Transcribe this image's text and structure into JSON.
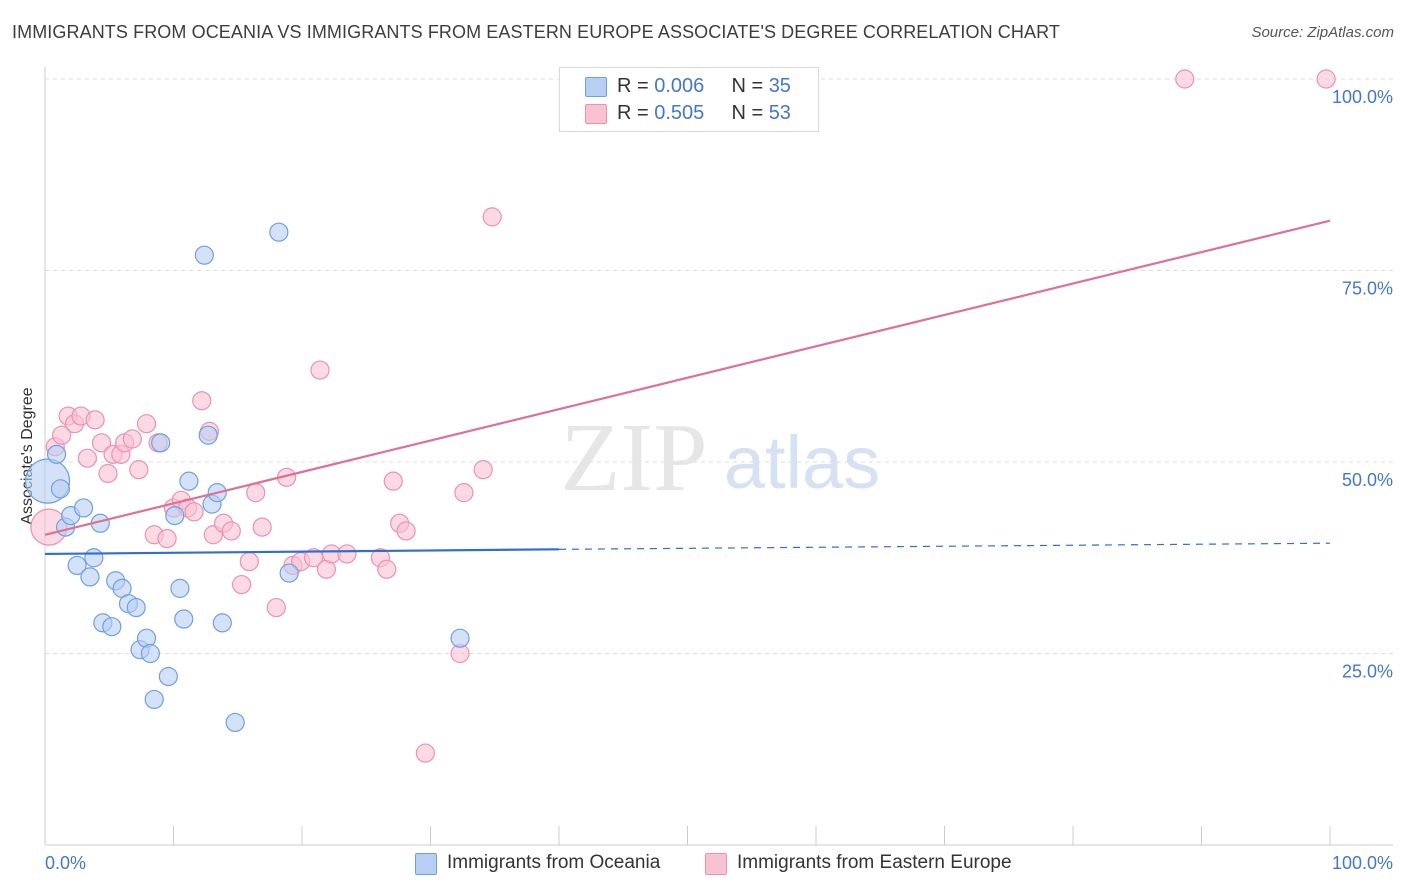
{
  "title": "IMMIGRANTS FROM OCEANIA VS IMMIGRANTS FROM EASTERN EUROPE ASSOCIATE'S DEGREE CORRELATION CHART",
  "source": "Source: ZipAtlas.com",
  "watermark": {
    "zip": "ZIP",
    "atlas": "atlas"
  },
  "legend": {
    "r_label": "R = ",
    "n_label": "N = ",
    "oceania": {
      "r": "0.006",
      "n": "35"
    },
    "eastern_europe": {
      "r": "0.505",
      "n": "53"
    }
  },
  "colors": {
    "oceania_fill": "#b7cff3",
    "oceania_stroke": "#6f9fe0",
    "oceania_line": "#2e6fd0",
    "europe_fill": "#f8c2d3",
    "europe_stroke": "#ec91ae",
    "europe_line": "#e06f96",
    "tick_label": "#4477cc",
    "grid": "#dddddd"
  },
  "chart_data": {
    "type": "scatter",
    "title": "IMMIGRANTS FROM OCEANIA VS IMMIGRANTS FROM EASTERN EUROPE ASSOCIATE'S DEGREE CORRELATION CHART",
    "xlabel": "",
    "ylabel": "Associate's Degree",
    "xlim": [
      0,
      100
    ],
    "ylim": [
      0,
      100
    ],
    "x_tick_labels": [
      "0.0%",
      "100.0%"
    ],
    "y_tick_labels": [
      "25.0%",
      "50.0%",
      "75.0%",
      "100.0%"
    ],
    "y_ticks": [
      25,
      50,
      75,
      100
    ],
    "grid": true,
    "series": [
      {
        "name": "Immigrants from Oceania",
        "r": 0.006,
        "n": 35,
        "trend": {
          "x0": 0,
          "y0": 38.0,
          "x1": 40,
          "y1": 38.6,
          "dash_to_x": 100,
          "dash_to_y": 39.4
        },
        "points": [
          [
            0.2,
            47.5,
            22
          ],
          [
            0.9,
            51.0,
            9
          ],
          [
            1.2,
            46.5,
            9
          ],
          [
            1.6,
            41.5,
            9
          ],
          [
            2.0,
            43.0,
            9
          ],
          [
            2.5,
            36.5,
            9
          ],
          [
            3.0,
            44.0,
            9
          ],
          [
            3.5,
            35.0,
            9
          ],
          [
            3.8,
            37.5,
            9
          ],
          [
            4.3,
            42.0,
            9
          ],
          [
            4.5,
            29.0,
            9
          ],
          [
            5.2,
            28.5,
            9
          ],
          [
            5.5,
            34.5,
            9
          ],
          [
            6.0,
            33.5,
            9
          ],
          [
            6.5,
            31.5,
            9
          ],
          [
            7.1,
            31.0,
            9
          ],
          [
            7.4,
            25.5,
            9
          ],
          [
            7.9,
            27.0,
            9
          ],
          [
            8.2,
            25.0,
            9
          ],
          [
            8.5,
            19.0,
            9
          ],
          [
            9.0,
            52.5,
            9
          ],
          [
            9.6,
            22.0,
            9
          ],
          [
            10.1,
            43.0,
            9
          ],
          [
            10.5,
            33.5,
            9
          ],
          [
            10.8,
            29.5,
            9
          ],
          [
            11.2,
            47.5,
            9
          ],
          [
            12.4,
            77.0,
            9
          ],
          [
            12.7,
            53.5,
            9
          ],
          [
            13.0,
            44.5,
            9
          ],
          [
            13.4,
            46.0,
            9
          ],
          [
            13.8,
            29.0,
            9
          ],
          [
            14.8,
            16.0,
            9
          ],
          [
            18.2,
            80.0,
            9
          ],
          [
            19.0,
            35.5,
            9
          ],
          [
            32.3,
            27.0,
            9
          ]
        ]
      },
      {
        "name": "Immigrants from Eastern Europe",
        "r": 0.505,
        "n": 53,
        "trend": {
          "x0": 0,
          "y0": 40.5,
          "x1": 100,
          "y1": 81.5
        },
        "points": [
          [
            0.3,
            41.5,
            18
          ],
          [
            0.8,
            52.0,
            9
          ],
          [
            1.3,
            53.5,
            9
          ],
          [
            1.8,
            56.0,
            9
          ],
          [
            2.3,
            55.0,
            9
          ],
          [
            2.8,
            56.0,
            9
          ],
          [
            3.3,
            50.5,
            9
          ],
          [
            3.9,
            55.5,
            9
          ],
          [
            4.4,
            52.5,
            9
          ],
          [
            4.9,
            48.5,
            9
          ],
          [
            5.3,
            51.0,
            9
          ],
          [
            5.9,
            51.0,
            9
          ],
          [
            6.2,
            52.5,
            9
          ],
          [
            6.8,
            53.0,
            9
          ],
          [
            7.3,
            49.0,
            9
          ],
          [
            7.9,
            55.0,
            9
          ],
          [
            8.5,
            40.5,
            9
          ],
          [
            8.8,
            52.5,
            9
          ],
          [
            9.5,
            40.0,
            9
          ],
          [
            10.0,
            44.0,
            9
          ],
          [
            10.6,
            45.0,
            9
          ],
          [
            11.1,
            44.0,
            9
          ],
          [
            11.6,
            43.5,
            9
          ],
          [
            12.2,
            58.0,
            9
          ],
          [
            12.8,
            54.0,
            9
          ],
          [
            13.1,
            40.5,
            9
          ],
          [
            13.9,
            42.0,
            9
          ],
          [
            14.5,
            41.0,
            9
          ],
          [
            15.3,
            34.0,
            9
          ],
          [
            15.9,
            37.0,
            9
          ],
          [
            16.4,
            46.0,
            9
          ],
          [
            16.9,
            41.5,
            9
          ],
          [
            18.0,
            31.0,
            9
          ],
          [
            18.8,
            48.0,
            9
          ],
          [
            19.3,
            36.5,
            9
          ],
          [
            19.9,
            37.0,
            9
          ],
          [
            20.9,
            37.5,
            9
          ],
          [
            21.4,
            62.0,
            9
          ],
          [
            21.9,
            36.0,
            9
          ],
          [
            22.3,
            38.0,
            9
          ],
          [
            23.5,
            38.0,
            9
          ],
          [
            26.1,
            37.5,
            9
          ],
          [
            26.6,
            36.0,
            9
          ],
          [
            27.1,
            47.5,
            9
          ],
          [
            27.6,
            42.0,
            9
          ],
          [
            28.1,
            41.0,
            9
          ],
          [
            29.6,
            12.0,
            9
          ],
          [
            32.3,
            25.0,
            9
          ],
          [
            32.6,
            46.0,
            9
          ],
          [
            34.1,
            49.0,
            9
          ],
          [
            34.8,
            82.0,
            9
          ],
          [
            88.7,
            100.0,
            9
          ],
          [
            99.7,
            100.0,
            9
          ]
        ]
      }
    ]
  }
}
